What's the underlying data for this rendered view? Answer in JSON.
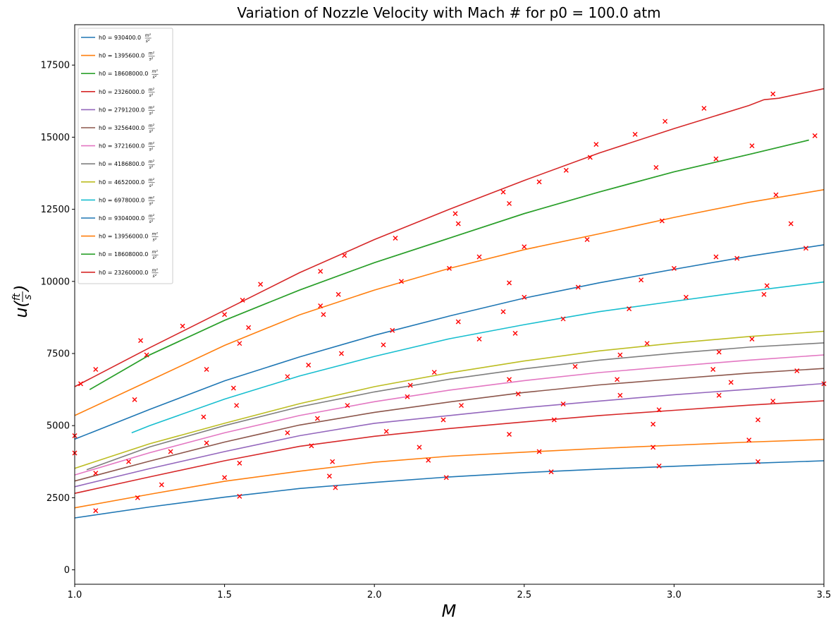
{
  "chart_data": {
    "type": "line",
    "title": "Variation of Nozzle Velocity with Mach # for p0 = 100.0 atm",
    "xlabel": "M",
    "ylabel": "u(ft/s)",
    "ylabel_main": "u",
    "ylabel_num": "ft",
    "ylabel_den": "s",
    "xlim": [
      1.0,
      3.5
    ],
    "ylim": [
      -500,
      18900
    ],
    "xticks": [
      1.0,
      1.5,
      2.0,
      2.5,
      3.0,
      3.5
    ],
    "xtick_labels": [
      "1.0",
      "1.5",
      "2.0",
      "2.5",
      "3.0",
      "3.5"
    ],
    "yticks": [
      0,
      2500,
      5000,
      7500,
      10000,
      12500,
      15000,
      17500
    ],
    "ytick_labels": [
      "0",
      "2500",
      "5000",
      "7500",
      "10000",
      "12500",
      "15000",
      "17500"
    ],
    "grid": false,
    "legend_position": "top-left",
    "legend_unit_num": "m²",
    "legend_unit_den": "s²",
    "series": [
      {
        "name": "h0 = 930400.0",
        "color": "#1f77b4",
        "x": [
          1.0,
          1.25,
          1.5,
          1.75,
          2.0,
          2.25,
          2.5,
          2.75,
          3.0,
          3.25,
          3.5
        ],
        "y": [
          1800,
          2180,
          2520,
          2820,
          3030,
          3220,
          3370,
          3490,
          3590,
          3690,
          3780
        ]
      },
      {
        "name": "h0 = 1395600.0",
        "color": "#ff7f0e",
        "x": [
          1.0,
          1.25,
          1.5,
          1.75,
          2.0,
          2.25,
          2.5,
          2.75,
          3.0,
          3.25,
          3.5
        ],
        "y": [
          2150,
          2620,
          3070,
          3420,
          3730,
          3940,
          4080,
          4210,
          4320,
          4430,
          4520
        ]
      },
      {
        "name": "h0 = 18608000.0",
        "color": "#2ca02c",
        "x": [
          1.05,
          1.25,
          1.5,
          1.75,
          2.0,
          2.25,
          2.5,
          2.75,
          3.0,
          3.25,
          3.45
        ],
        "y": [
          6250,
          7450,
          8650,
          9700,
          10650,
          11500,
          12350,
          13100,
          13800,
          14400,
          14900
        ]
      },
      {
        "name": "h0 = 2326000.0",
        "color": "#d62728",
        "x": [
          1.0,
          1.25,
          1.5,
          1.75,
          2.0,
          2.25,
          2.5,
          2.75,
          3.0,
          3.25,
          3.5
        ],
        "y": [
          2650,
          3220,
          3780,
          4280,
          4630,
          4900,
          5130,
          5350,
          5530,
          5710,
          5860
        ]
      },
      {
        "name": "h0 = 2791200.0",
        "color": "#9467bd",
        "x": [
          1.0,
          1.25,
          1.5,
          1.75,
          2.0,
          2.25,
          2.5,
          2.75,
          3.0,
          3.25,
          3.5
        ],
        "y": [
          2880,
          3510,
          4100,
          4650,
          5080,
          5350,
          5620,
          5850,
          6070,
          6260,
          6460
        ]
      },
      {
        "name": "h0 = 3256400.0",
        "color": "#8c564b",
        "x": [
          1.0,
          1.25,
          1.5,
          1.75,
          2.0,
          2.25,
          2.5,
          2.75,
          3.0,
          3.25,
          3.5
        ],
        "y": [
          3080,
          3770,
          4430,
          5020,
          5460,
          5820,
          6150,
          6410,
          6620,
          6820,
          6980
        ]
      },
      {
        "name": "h0 = 3721600.0",
        "color": "#e377c2",
        "x": [
          1.0,
          1.25,
          1.5,
          1.75,
          2.0,
          2.25,
          2.5,
          2.75,
          3.0,
          3.25,
          3.5
        ],
        "y": [
          3290,
          4060,
          4750,
          5350,
          5830,
          6230,
          6560,
          6840,
          7060,
          7270,
          7450
        ]
      },
      {
        "name": "h0 = 4186800.0",
        "color": "#7f7f7f",
        "x": [
          1.04,
          1.25,
          1.5,
          1.75,
          2.0,
          2.25,
          2.5,
          2.75,
          3.0,
          3.25,
          3.5
        ],
        "y": [
          3470,
          4260,
          5000,
          5650,
          6170,
          6610,
          6970,
          7270,
          7510,
          7720,
          7870
        ]
      },
      {
        "name": "h0 = 4652000.0",
        "color": "#bcbd22",
        "x": [
          1.0,
          1.25,
          1.5,
          1.75,
          2.0,
          2.25,
          2.5,
          2.75,
          3.0,
          3.25,
          3.5
        ],
        "y": [
          3520,
          4370,
          5080,
          5760,
          6350,
          6830,
          7240,
          7590,
          7860,
          8090,
          8270
        ]
      },
      {
        "name": "h0 = 6978000.0",
        "color": "#17becf",
        "x": [
          1.19,
          1.25,
          1.5,
          1.75,
          2.0,
          2.25,
          2.5,
          2.75,
          3.0,
          3.25,
          3.5
        ],
        "y": [
          4750,
          5000,
          5920,
          6720,
          7400,
          8010,
          8500,
          8950,
          9310,
          9660,
          9980
        ]
      },
      {
        "name": "h0 = 9304000.0",
        "color": "#1f77b4",
        "x": [
          1.0,
          1.25,
          1.5,
          1.75,
          2.0,
          2.25,
          2.5,
          2.75,
          3.0,
          3.25,
          3.5
        ],
        "y": [
          4530,
          5560,
          6550,
          7380,
          8130,
          8800,
          9420,
          9950,
          10420,
          10870,
          11270
        ]
      },
      {
        "name": "h0 = 13956000.0",
        "color": "#ff7f0e",
        "x": [
          1.0,
          1.25,
          1.5,
          1.75,
          2.0,
          2.25,
          2.5,
          2.75,
          3.0,
          3.25,
          3.5
        ],
        "y": [
          5350,
          6560,
          7780,
          8840,
          9700,
          10450,
          11100,
          11650,
          12220,
          12740,
          13180
        ]
      },
      {
        "name": "h0 = 18608000.0",
        "color": "#2ca02c",
        "x": [
          1.05,
          1.25,
          1.5,
          1.75,
          2.0,
          2.25,
          2.5,
          2.75,
          3.0,
          3.25,
          3.45
        ],
        "y": [
          6250,
          7450,
          8650,
          9700,
          10650,
          11500,
          12350,
          13100,
          13800,
          14400,
          14900
        ]
      },
      {
        "name": "h0 = 23260000.0",
        "color": "#d62728",
        "x": [
          1.0,
          1.25,
          1.5,
          1.75,
          2.0,
          2.25,
          2.5,
          2.75,
          3.0,
          3.25,
          3.3,
          3.35,
          3.5
        ],
        "y": [
          6350,
          7700,
          9000,
          10300,
          11450,
          12500,
          13500,
          14450,
          15300,
          16100,
          16300,
          16350,
          16680
        ]
      }
    ],
    "scatter": {
      "name": "",
      "marker": "x",
      "color": "#ff0000",
      "points": [
        [
          1.0,
          4050
        ],
        [
          1.0,
          4650
        ],
        [
          1.02,
          6450
        ],
        [
          1.07,
          2050
        ],
        [
          1.07,
          3350
        ],
        [
          1.07,
          6950
        ],
        [
          1.18,
          3750
        ],
        [
          1.2,
          5900
        ],
        [
          1.21,
          2500
        ],
        [
          1.22,
          7950
        ],
        [
          1.24,
          7450
        ],
        [
          1.29,
          2950
        ],
        [
          1.32,
          4100
        ],
        [
          1.36,
          8450
        ],
        [
          1.43,
          5300
        ],
        [
          1.44,
          4400
        ],
        [
          1.44,
          6950
        ],
        [
          1.5,
          3200
        ],
        [
          1.5,
          8850
        ],
        [
          1.53,
          6300
        ],
        [
          1.54,
          5700
        ],
        [
          1.55,
          2550
        ],
        [
          1.55,
          3700
        ],
        [
          1.55,
          7850
        ],
        [
          1.56,
          9350
        ],
        [
          1.58,
          8400
        ],
        [
          1.62,
          9900
        ],
        [
          1.71,
          6700
        ],
        [
          1.71,
          4750
        ],
        [
          1.78,
          7100
        ],
        [
          1.79,
          4300
        ],
        [
          1.81,
          5250
        ],
        [
          1.82,
          9150
        ],
        [
          1.82,
          10350
        ],
        [
          1.83,
          8850
        ],
        [
          1.85,
          3250
        ],
        [
          1.86,
          3750
        ],
        [
          1.87,
          2850
        ],
        [
          1.88,
          9550
        ],
        [
          1.89,
          7500
        ],
        [
          1.9,
          10900
        ],
        [
          1.91,
          5700
        ],
        [
          2.03,
          7800
        ],
        [
          2.04,
          4800
        ],
        [
          2.06,
          8300
        ],
        [
          2.07,
          11500
        ],
        [
          2.09,
          10000
        ],
        [
          2.11,
          6000
        ],
        [
          2.12,
          6400
        ],
        [
          2.15,
          4250
        ],
        [
          2.18,
          3800
        ],
        [
          2.2,
          6850
        ],
        [
          2.23,
          5200
        ],
        [
          2.24,
          3200
        ],
        [
          2.25,
          10450
        ],
        [
          2.27,
          12350
        ],
        [
          2.28,
          8600
        ],
        [
          2.28,
          12000
        ],
        [
          2.29,
          5700
        ],
        [
          2.35,
          8000
        ],
        [
          2.35,
          10850
        ],
        [
          2.43,
          8950
        ],
        [
          2.43,
          13100
        ],
        [
          2.45,
          4700
        ],
        [
          2.45,
          6600
        ],
        [
          2.45,
          9950
        ],
        [
          2.45,
          12700
        ],
        [
          2.47,
          8200
        ],
        [
          2.48,
          6100
        ],
        [
          2.5,
          9450
        ],
        [
          2.5,
          11200
        ],
        [
          2.55,
          4100
        ],
        [
          2.55,
          13450
        ],
        [
          2.59,
          3400
        ],
        [
          2.6,
          5200
        ],
        [
          2.63,
          5750
        ],
        [
          2.63,
          8700
        ],
        [
          2.64,
          13850
        ],
        [
          2.67,
          7050
        ],
        [
          2.68,
          9800
        ],
        [
          2.71,
          11450
        ],
        [
          2.72,
          14300
        ],
        [
          2.74,
          14750
        ],
        [
          2.81,
          6600
        ],
        [
          2.82,
          6050
        ],
        [
          2.82,
          7450
        ],
        [
          2.85,
          9050
        ],
        [
          2.87,
          15100
        ],
        [
          2.89,
          10050
        ],
        [
          2.91,
          7850
        ],
        [
          2.93,
          4250
        ],
        [
          2.93,
          5050
        ],
        [
          2.94,
          13950
        ],
        [
          2.95,
          3600
        ],
        [
          2.95,
          5550
        ],
        [
          2.96,
          12100
        ],
        [
          2.97,
          15550
        ],
        [
          3.0,
          10450
        ],
        [
          3.04,
          9450
        ],
        [
          3.1,
          16000
        ],
        [
          3.13,
          6950
        ],
        [
          3.14,
          10850
        ],
        [
          3.14,
          14250
        ],
        [
          3.15,
          6050
        ],
        [
          3.15,
          7550
        ],
        [
          3.19,
          6500
        ],
        [
          3.21,
          10800
        ],
        [
          3.25,
          4500
        ],
        [
          3.26,
          8000
        ],
        [
          3.26,
          14700
        ],
        [
          3.28,
          3750
        ],
        [
          3.28,
          5200
        ],
        [
          3.3,
          9550
        ],
        [
          3.31,
          9850
        ],
        [
          3.33,
          5850
        ],
        [
          3.33,
          16500
        ],
        [
          3.34,
          13000
        ],
        [
          3.39,
          12000
        ],
        [
          3.41,
          6900
        ],
        [
          3.44,
          11150
        ],
        [
          3.47,
          15050
        ],
        [
          3.5,
          6450
        ]
      ]
    }
  }
}
